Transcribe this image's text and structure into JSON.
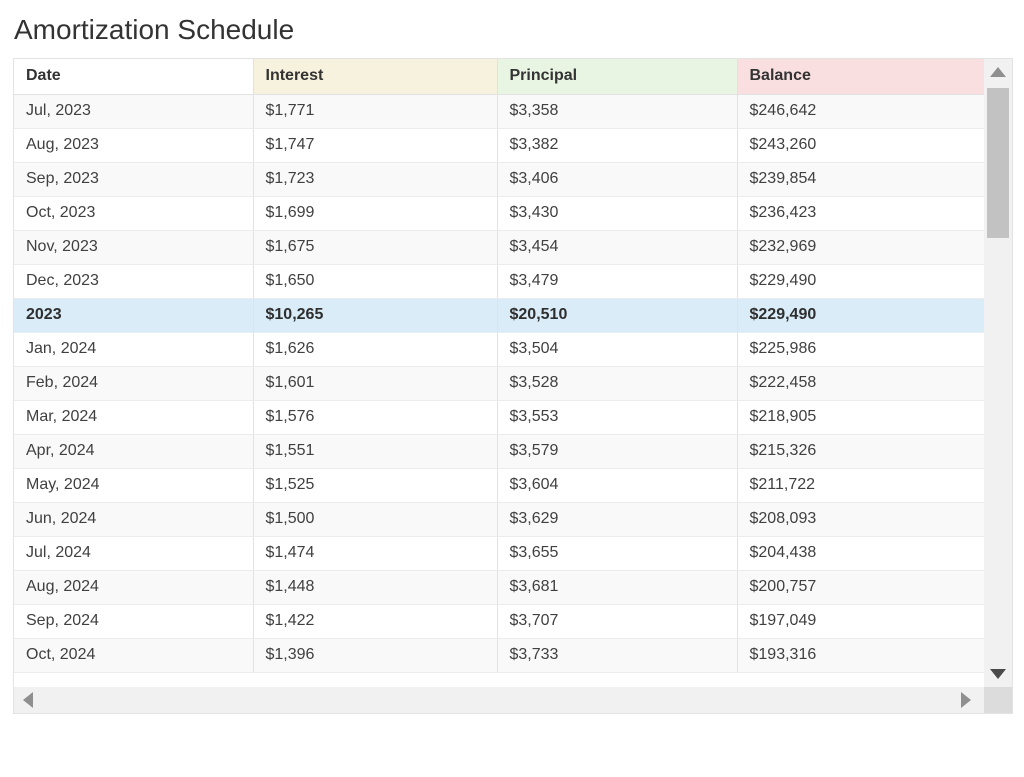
{
  "page": {
    "title": "Amortization Schedule"
  },
  "table": {
    "columns": [
      {
        "id": "date",
        "label": "Date",
        "bg": "#ffffff"
      },
      {
        "id": "interest",
        "label": "Interest",
        "bg": "#f7f2de"
      },
      {
        "id": "principal",
        "label": "Principal",
        "bg": "#e9f5e3"
      },
      {
        "id": "balance",
        "label": "Balance",
        "bg": "#f9dfdf"
      }
    ],
    "rows": [
      {
        "date": "Jul, 2023",
        "interest": "$1,771",
        "principal": "$3,358",
        "balance": "$246,642",
        "type": "month"
      },
      {
        "date": "Aug, 2023",
        "interest": "$1,747",
        "principal": "$3,382",
        "balance": "$243,260",
        "type": "month"
      },
      {
        "date": "Sep, 2023",
        "interest": "$1,723",
        "principal": "$3,406",
        "balance": "$239,854",
        "type": "month"
      },
      {
        "date": "Oct, 2023",
        "interest": "$1,699",
        "principal": "$3,430",
        "balance": "$236,423",
        "type": "month"
      },
      {
        "date": "Nov, 2023",
        "interest": "$1,675",
        "principal": "$3,454",
        "balance": "$232,969",
        "type": "month"
      },
      {
        "date": "Dec, 2023",
        "interest": "$1,650",
        "principal": "$3,479",
        "balance": "$229,490",
        "type": "month"
      },
      {
        "date": "2023",
        "interest": "$10,265",
        "principal": "$20,510",
        "balance": "$229,490",
        "type": "year-summary"
      },
      {
        "date": "Jan, 2024",
        "interest": "$1,626",
        "principal": "$3,504",
        "balance": "$225,986",
        "type": "month"
      },
      {
        "date": "Feb, 2024",
        "interest": "$1,601",
        "principal": "$3,528",
        "balance": "$222,458",
        "type": "month"
      },
      {
        "date": "Mar, 2024",
        "interest": "$1,576",
        "principal": "$3,553",
        "balance": "$218,905",
        "type": "month"
      },
      {
        "date": "Apr, 2024",
        "interest": "$1,551",
        "principal": "$3,579",
        "balance": "$215,326",
        "type": "month"
      },
      {
        "date": "May, 2024",
        "interest": "$1,525",
        "principal": "$3,604",
        "balance": "$211,722",
        "type": "month"
      },
      {
        "date": "Jun, 2024",
        "interest": "$1,500",
        "principal": "$3,629",
        "balance": "$208,093",
        "type": "month"
      },
      {
        "date": "Jul, 2024",
        "interest": "$1,474",
        "principal": "$3,655",
        "balance": "$204,438",
        "type": "month"
      },
      {
        "date": "Aug, 2024",
        "interest": "$1,448",
        "principal": "$3,681",
        "balance": "$200,757",
        "type": "month"
      },
      {
        "date": "Sep, 2024",
        "interest": "$1,422",
        "principal": "$3,707",
        "balance": "$197,049",
        "type": "month"
      },
      {
        "date": "Oct, 2024",
        "interest": "$1,396",
        "principal": "$3,733",
        "balance": "$193,316",
        "type": "month"
      }
    ]
  },
  "scrollbars": {
    "vertical": {
      "up_icon": "scroll-up-icon",
      "down_icon": "scroll-down-icon",
      "thumb": "vertical-scrollbar-thumb"
    },
    "horizontal": {
      "left_icon": "scroll-left-icon",
      "right_icon": "scroll-right-icon"
    }
  },
  "colors": {
    "title_text": "#333333",
    "cell_text": "#404040",
    "header_text": "#333333",
    "summary_row_bg": "#d9ecf7",
    "summary_text": "#2e2e2e",
    "stripe_row_bg": "#f9f9f9",
    "row_border": "#ececec",
    "column_border": "#e2e2e2",
    "card_border": "#e3e3e3",
    "scroll_track": "#f1f1f1",
    "scroll_thumb": "#c2c2c2",
    "scroll_arrow": "#8f8f8f",
    "scroll_arrow_dark": "#4a4a4a",
    "scroll_corner": "#dcdcdc"
  }
}
